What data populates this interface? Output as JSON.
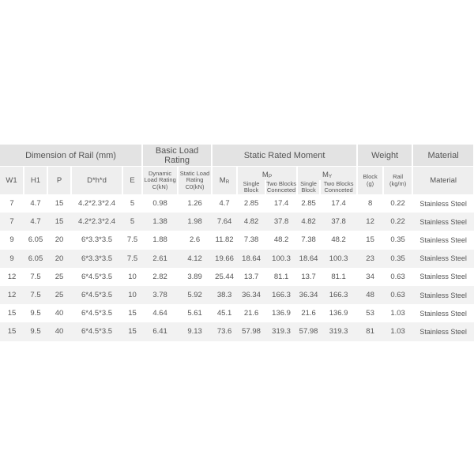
{
  "table": {
    "groups": [
      "Dimension of Rail (mm)",
      "Basic Load Rating",
      "Static Rated Moment",
      "Weight",
      "Material"
    ],
    "sub": {
      "w1": "W1",
      "h1": "H1",
      "p": "P",
      "dhd": "D*h*d",
      "e": "E",
      "dynamic": [
        "Dynamic",
        "Load Rating",
        "C(kN)"
      ],
      "static": [
        "Static Load",
        "Rating",
        "C0(kN)"
      ],
      "mr": {
        "symbol": "M",
        "subscript": "R"
      },
      "mp": {
        "symbol": "M",
        "subscript": "P"
      },
      "my": {
        "symbol": "M",
        "subscript": "Y"
      },
      "single": [
        "Single",
        "Block"
      ],
      "two": [
        "Two Blocks",
        "Connceted"
      ],
      "block": [
        "Block",
        "(g)"
      ],
      "rail": [
        "Rail",
        "(kg/m)"
      ],
      "material": "Material"
    },
    "rows": [
      [
        7,
        4.7,
        15,
        "4.2*2.3*2.4",
        5,
        0.98,
        1.26,
        4.7,
        2.85,
        17.4,
        2.85,
        17.4,
        8,
        0.22,
        "Stainless Steel"
      ],
      [
        7,
        4.7,
        15,
        "4.2*2.3*2.4",
        5,
        1.38,
        1.98,
        7.64,
        4.82,
        37.8,
        4.82,
        37.8,
        12,
        0.22,
        "Stainless Steel"
      ],
      [
        9,
        6.05,
        20,
        "6*3.3*3.5",
        7.5,
        1.88,
        2.6,
        11.82,
        7.38,
        48.2,
        7.38,
        48.2,
        15,
        0.35,
        "Stainless Steel"
      ],
      [
        9,
        6.05,
        20,
        "6*3.3*3.5",
        7.5,
        2.61,
        4.12,
        19.66,
        18.64,
        100.3,
        18.64,
        100.3,
        23,
        0.35,
        "Stainless Steel"
      ],
      [
        12,
        7.5,
        25,
        "6*4.5*3.5",
        10,
        2.82,
        3.89,
        25.44,
        13.7,
        81.1,
        13.7,
        81.1,
        34,
        0.63,
        "Stainless Steel"
      ],
      [
        12,
        7.5,
        25,
        "6*4.5*3.5",
        10,
        3.78,
        5.92,
        38.3,
        36.34,
        166.3,
        36.34,
        166.3,
        48,
        0.63,
        "Stainless Steel"
      ],
      [
        15,
        9.5,
        40,
        "6*4.5*3.5",
        15,
        4.64,
        5.61,
        45.1,
        21.6,
        136.9,
        21.6,
        136.9,
        53,
        1.03,
        "Stainless Steel"
      ],
      [
        15,
        9.5,
        40,
        "6*4.5*3.5",
        15,
        6.41,
        9.13,
        73.6,
        57.98,
        319.3,
        57.98,
        319.3,
        81,
        1.03,
        "Stainless Steel"
      ]
    ]
  }
}
